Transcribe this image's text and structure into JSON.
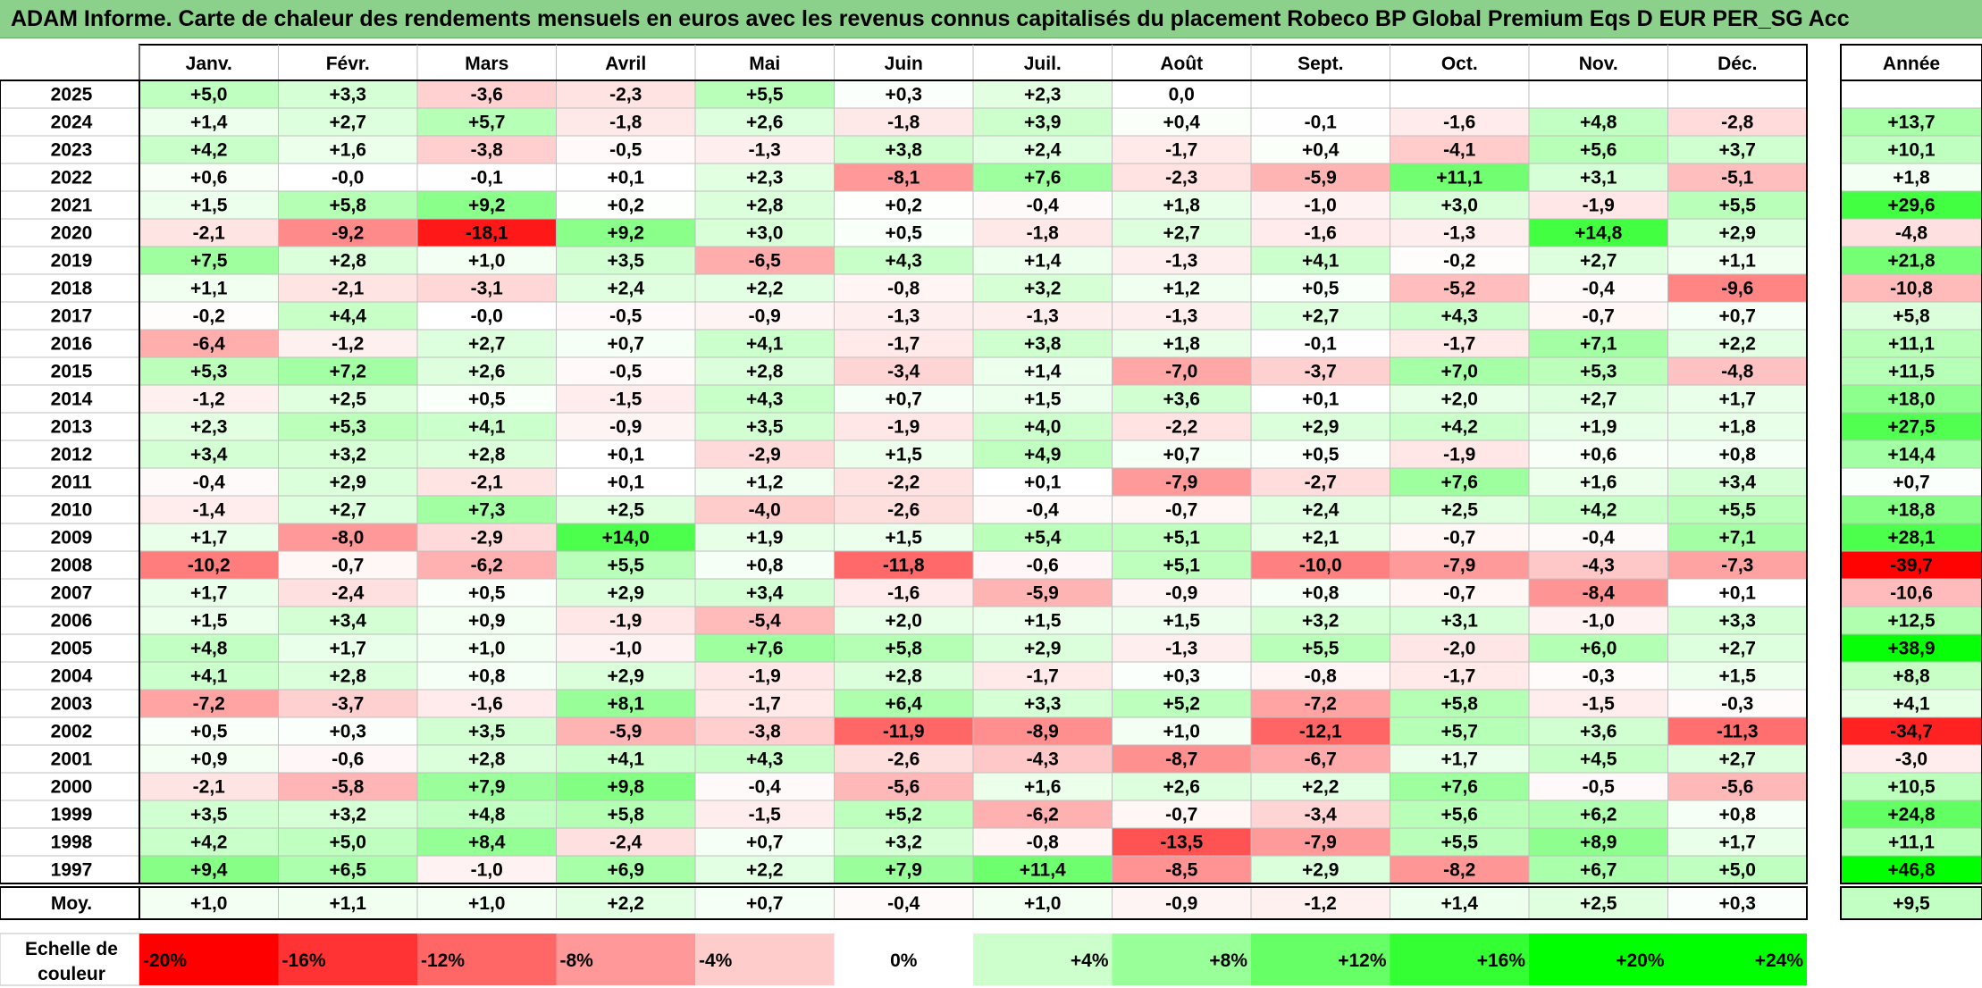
{
  "title": "ADAM Informe. Carte de chaleur des rendements mensuels en euros avec les revenus connus capitalisés du placement Robeco BP Global Premium Eqs D EUR PER_SG Acc",
  "chart_data": {
    "type": "heatmap",
    "months": [
      "Janv.",
      "Févr.",
      "Mars",
      "Avril",
      "Mai",
      "Juin",
      "Juil.",
      "Août",
      "Sept.",
      "Oct.",
      "Nov.",
      "Déc."
    ],
    "annual_header": "Année",
    "rows": [
      {
        "year": "2025",
        "months": [
          "+5,0",
          "+3,3",
          "-3,6",
          "-2,3",
          "+5,5",
          "+0,3",
          "+2,3",
          "0,0",
          "",
          "",
          "",
          ""
        ],
        "annual": ""
      },
      {
        "year": "2024",
        "months": [
          "+1,4",
          "+2,7",
          "+5,7",
          "-1,8",
          "+2,6",
          "-1,8",
          "+3,9",
          "+0,4",
          "-0,1",
          "-1,6",
          "+4,8",
          "-2,8"
        ],
        "annual": "+13,7"
      },
      {
        "year": "2023",
        "months": [
          "+4,2",
          "+1,6",
          "-3,8",
          "-0,5",
          "-1,3",
          "+3,8",
          "+2,4",
          "-1,7",
          "+0,4",
          "-4,1",
          "+5,6",
          "+3,7"
        ],
        "annual": "+10,1"
      },
      {
        "year": "2022",
        "months": [
          "+0,6",
          "-0,0",
          "-0,1",
          "+0,1",
          "+2,3",
          "-8,1",
          "+7,6",
          "-2,3",
          "-5,9",
          "+11,1",
          "+3,1",
          "-5,1"
        ],
        "annual": "+1,8"
      },
      {
        "year": "2021",
        "months": [
          "+1,5",
          "+5,8",
          "+9,2",
          "+0,2",
          "+2,8",
          "+0,2",
          "-0,4",
          "+1,8",
          "-1,0",
          "+3,0",
          "-1,9",
          "+5,5"
        ],
        "annual": "+29,6"
      },
      {
        "year": "2020",
        "months": [
          "-2,1",
          "-9,2",
          "-18,1",
          "+9,2",
          "+3,0",
          "+0,5",
          "-1,8",
          "+2,7",
          "-1,6",
          "-1,3",
          "+14,8",
          "+2,9"
        ],
        "annual": "-4,8"
      },
      {
        "year": "2019",
        "months": [
          "+7,5",
          "+2,8",
          "+1,0",
          "+3,5",
          "-6,5",
          "+4,3",
          "+1,4",
          "-1,3",
          "+4,1",
          "-0,2",
          "+2,7",
          "+1,1"
        ],
        "annual": "+21,8"
      },
      {
        "year": "2018",
        "months": [
          "+1,1",
          "-2,1",
          "-3,1",
          "+2,4",
          "+2,2",
          "-0,8",
          "+3,2",
          "+1,2",
          "+0,5",
          "-5,2",
          "-0,4",
          "-9,6"
        ],
        "annual": "-10,8"
      },
      {
        "year": "2017",
        "months": [
          "-0,2",
          "+4,4",
          "-0,0",
          "-0,5",
          "-0,9",
          "-1,3",
          "-1,3",
          "-1,3",
          "+2,7",
          "+4,3",
          "-0,7",
          "+0,7"
        ],
        "annual": "+5,8"
      },
      {
        "year": "2016",
        "months": [
          "-6,4",
          "-1,2",
          "+2,7",
          "+0,7",
          "+4,1",
          "-1,7",
          "+3,8",
          "+1,8",
          "-0,1",
          "-1,7",
          "+7,1",
          "+2,2"
        ],
        "annual": "+11,1"
      },
      {
        "year": "2015",
        "months": [
          "+5,3",
          "+7,2",
          "+2,6",
          "-0,5",
          "+2,8",
          "-3,4",
          "+1,4",
          "-7,0",
          "-3,7",
          "+7,0",
          "+5,3",
          "-4,8"
        ],
        "annual": "+11,5"
      },
      {
        "year": "2014",
        "months": [
          "-1,2",
          "+2,5",
          "+0,5",
          "-1,5",
          "+4,3",
          "+0,7",
          "+1,5",
          "+3,6",
          "+0,1",
          "+2,0",
          "+2,7",
          "+1,7"
        ],
        "annual": "+18,0"
      },
      {
        "year": "2013",
        "months": [
          "+2,3",
          "+5,3",
          "+4,1",
          "-0,9",
          "+3,5",
          "-1,9",
          "+4,0",
          "-2,2",
          "+2,9",
          "+4,2",
          "+1,9",
          "+1,8"
        ],
        "annual": "+27,5"
      },
      {
        "year": "2012",
        "months": [
          "+3,4",
          "+3,2",
          "+2,8",
          "+0,1",
          "-2,9",
          "+1,5",
          "+4,9",
          "+0,7",
          "+0,5",
          "-1,9",
          "+0,6",
          "+0,8"
        ],
        "annual": "+14,4"
      },
      {
        "year": "2011",
        "months": [
          "-0,4",
          "+2,9",
          "-2,1",
          "+0,1",
          "+1,2",
          "-2,2",
          "+0,1",
          "-7,9",
          "-2,7",
          "+7,6",
          "+1,6",
          "+3,4"
        ],
        "annual": "+0,7"
      },
      {
        "year": "2010",
        "months": [
          "-1,4",
          "+2,7",
          "+7,3",
          "+2,5",
          "-4,0",
          "-2,6",
          "-0,4",
          "-0,7",
          "+2,4",
          "+2,5",
          "+4,2",
          "+5,5"
        ],
        "annual": "+18,8"
      },
      {
        "year": "2009",
        "months": [
          "+1,7",
          "-8,0",
          "-2,9",
          "+14,0",
          "+1,9",
          "+1,5",
          "+5,4",
          "+5,1",
          "+2,1",
          "-0,7",
          "-0,4",
          "+7,1"
        ],
        "annual": "+28,1"
      },
      {
        "year": "2008",
        "months": [
          "-10,2",
          "-0,7",
          "-6,2",
          "+5,5",
          "+0,8",
          "-11,8",
          "-0,6",
          "+5,1",
          "-10,0",
          "-7,9",
          "-4,3",
          "-7,3"
        ],
        "annual": "-39,7"
      },
      {
        "year": "2007",
        "months": [
          "+1,7",
          "-2,4",
          "+0,5",
          "+2,9",
          "+3,4",
          "-1,6",
          "-5,9",
          "-0,9",
          "+0,8",
          "-0,7",
          "-8,4",
          "+0,1"
        ],
        "annual": "-10,6"
      },
      {
        "year": "2006",
        "months": [
          "+1,5",
          "+3,4",
          "+0,9",
          "-1,9",
          "-5,4",
          "+2,0",
          "+1,5",
          "+1,5",
          "+3,2",
          "+3,1",
          "-1,0",
          "+3,3"
        ],
        "annual": "+12,5"
      },
      {
        "year": "2005",
        "months": [
          "+4,8",
          "+1,7",
          "+1,0",
          "-1,0",
          "+7,6",
          "+5,8",
          "+2,9",
          "-1,3",
          "+5,5",
          "-2,0",
          "+6,0",
          "+2,7"
        ],
        "annual": "+38,9"
      },
      {
        "year": "2004",
        "months": [
          "+4,1",
          "+2,8",
          "+0,8",
          "+2,9",
          "-1,9",
          "+2,8",
          "-1,7",
          "+0,3",
          "-0,8",
          "-1,7",
          "-0,3",
          "+1,5"
        ],
        "annual": "+8,8"
      },
      {
        "year": "2003",
        "months": [
          "-7,2",
          "-3,7",
          "-1,6",
          "+8,1",
          "-1,7",
          "+6,4",
          "+3,3",
          "+5,2",
          "-7,2",
          "+5,8",
          "-1,5",
          "-0,3"
        ],
        "annual": "+4,1"
      },
      {
        "year": "2002",
        "months": [
          "+0,5",
          "+0,3",
          "+3,5",
          "-5,9",
          "-3,8",
          "-11,9",
          "-8,9",
          "+1,0",
          "-12,1",
          "+5,7",
          "+3,6",
          "-11,3"
        ],
        "annual": "-34,7"
      },
      {
        "year": "2001",
        "months": [
          "+0,9",
          "-0,6",
          "+2,8",
          "+4,1",
          "+4,3",
          "-2,6",
          "-4,3",
          "-8,7",
          "-6,7",
          "+1,7",
          "+4,5",
          "+2,7"
        ],
        "annual": "-3,0"
      },
      {
        "year": "2000",
        "months": [
          "-2,1",
          "-5,8",
          "+7,9",
          "+9,8",
          "-0,4",
          "-5,6",
          "+1,6",
          "+2,6",
          "+2,2",
          "+7,6",
          "-0,5",
          "-5,6"
        ],
        "annual": "+10,5"
      },
      {
        "year": "1999",
        "months": [
          "+3,5",
          "+3,2",
          "+4,8",
          "+5,8",
          "-1,5",
          "+5,2",
          "-6,2",
          "-0,7",
          "-3,4",
          "+5,6",
          "+6,2",
          "+0,8"
        ],
        "annual": "+24,8"
      },
      {
        "year": "1998",
        "months": [
          "+4,2",
          "+5,0",
          "+8,4",
          "-2,4",
          "+0,7",
          "+3,2",
          "-0,8",
          "-13,5",
          "-7,9",
          "+5,5",
          "+8,9",
          "+1,7"
        ],
        "annual": "+11,1"
      },
      {
        "year": "1997",
        "months": [
          "+9,4",
          "+6,5",
          "-1,0",
          "+6,9",
          "+2,2",
          "+7,9",
          "+11,4",
          "-8,5",
          "+2,9",
          "-8,2",
          "+6,7",
          "+5,0"
        ],
        "annual": "+46,8"
      }
    ],
    "average": {
      "label": "Moy.",
      "months": [
        "+1,0",
        "+1,1",
        "+1,0",
        "+2,2",
        "+0,7",
        "-0,4",
        "+1,0",
        "-0,9",
        "-1,2",
        "+1,4",
        "+2,5",
        "+0,3"
      ],
      "annual": "+9,5"
    },
    "scale": {
      "label_line1": "Echelle de",
      "label_line2": "couleur",
      "stops": [
        {
          "label": "-20%",
          "value": -20,
          "align": "left"
        },
        {
          "label": "-16%",
          "value": -16,
          "align": "left"
        },
        {
          "label": "-12%",
          "value": -12,
          "align": "left"
        },
        {
          "label": "-8%",
          "value": -8,
          "align": "left"
        },
        {
          "label": "-4%",
          "value": -4,
          "align": "left"
        },
        {
          "label": "0%",
          "value": 0,
          "align": "center"
        },
        {
          "label": "+4%",
          "value": 4,
          "align": "right"
        },
        {
          "label": "+8%",
          "value": 8,
          "align": "right"
        },
        {
          "label": "+12%",
          "value": 12,
          "align": "right"
        },
        {
          "label": "+16%",
          "value": 16,
          "align": "right"
        },
        {
          "label": "+20%",
          "value": 20,
          "align": "right"
        },
        {
          "label": "+24%",
          "value": 24,
          "align": "right"
        }
      ]
    },
    "colors": {
      "title_bg": "#8bd08b",
      "neg_max": "#ff0000",
      "pos_max": "#00ff00",
      "zero": "#ffffff",
      "border": "#000000",
      "grid": "#bfbfbf"
    }
  }
}
